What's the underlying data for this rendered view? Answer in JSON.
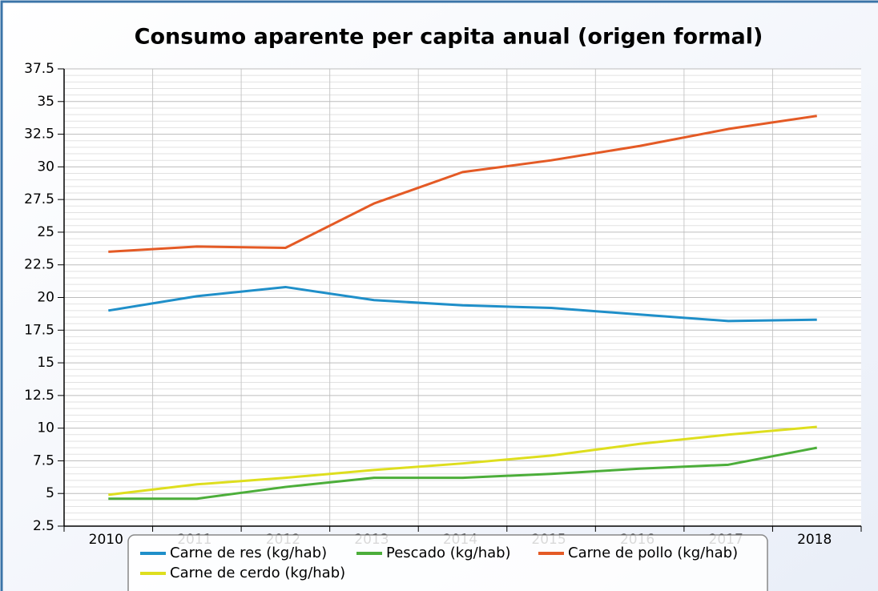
{
  "chart_data": {
    "type": "line",
    "title": "Consumo aparente per capita anual (origen formal)",
    "categories": [
      "2010",
      "2011",
      "2012",
      "2013",
      "2014",
      "2015",
      "2016",
      "2017",
      "2018"
    ],
    "series": [
      {
        "name": "Carne de res (kg/hab)",
        "color": "#1f8fc9",
        "values": [
          19.0,
          20.1,
          20.8,
          19.8,
          19.4,
          19.2,
          18.7,
          18.2,
          18.3
        ]
      },
      {
        "name": "Pescado (kg/hab)",
        "color": "#4cae3a",
        "values": [
          4.6,
          4.6,
          5.5,
          6.2,
          6.2,
          6.5,
          6.9,
          7.2,
          8.5
        ]
      },
      {
        "name": "Carne de pollo (kg/hab)",
        "color": "#e45a25",
        "values": [
          23.5,
          23.9,
          23.8,
          27.2,
          29.6,
          30.5,
          31.6,
          32.9,
          33.9
        ]
      },
      {
        "name": "Carne de cerdo (kg/hab)",
        "color": "#dede1e",
        "values": [
          4.9,
          5.7,
          6.2,
          6.8,
          7.3,
          7.9,
          8.8,
          9.5,
          10.1
        ]
      }
    ],
    "ylim": [
      2.5,
      37.5
    ],
    "yticks": [
      2.5,
      5,
      7.5,
      10,
      12.5,
      15,
      17.5,
      20,
      22.5,
      25,
      27.5,
      30,
      32.5,
      35,
      37.5
    ],
    "grid": true,
    "legend": "bottom"
  }
}
